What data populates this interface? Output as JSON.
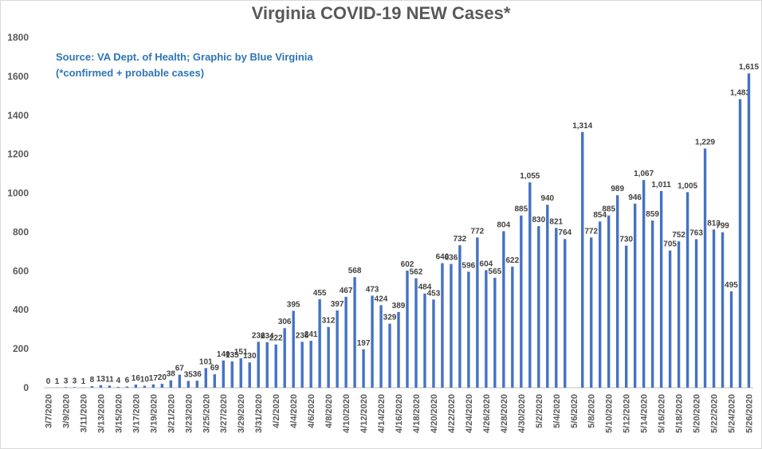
{
  "chart_data": {
    "type": "bar",
    "title": "Virginia COVID-19 NEW Cases*",
    "annotations": [
      "Source: VA Dept. of Health; Graphic by Blue Virginia",
      "(*confirmed + probable cases)"
    ],
    "categories": [
      "3/7/2020",
      null,
      "3/9/2020",
      null,
      "3/11/2020",
      null,
      "3/13/2020",
      null,
      "3/15/2020",
      null,
      "3/17/2020",
      null,
      "3/19/2020",
      null,
      "3/21/2020",
      null,
      "3/23/2020",
      null,
      "3/25/2020",
      null,
      "3/27/2020",
      null,
      "3/29/2020",
      null,
      "3/31/2020",
      null,
      "4/2/2020",
      null,
      "4/4/2020",
      null,
      "4/6/2020",
      null,
      "4/8/2020",
      null,
      "4/10/2020",
      null,
      "4/12/2020",
      null,
      "4/14/2020",
      null,
      "4/16/2020",
      null,
      "4/18/2020",
      null,
      "4/20/2020",
      null,
      "4/22/2020",
      null,
      "4/24/2020",
      null,
      "4/26/2020",
      null,
      "4/28/2020",
      null,
      "4/30/2020",
      null,
      "5/2/2020",
      null,
      "5/4/2020",
      null,
      "5/6/2020",
      null,
      "5/8/2020",
      null,
      "5/10/2020",
      null,
      "5/12/2020",
      null,
      "5/14/2020",
      null,
      "5/16/2020",
      null,
      "5/18/2020",
      null,
      "5/20/2020",
      null,
      "5/22/2020",
      null,
      "5/24/2020",
      null,
      "5/26/2020"
    ],
    "values": [
      0,
      1,
      3,
      3,
      1,
      8,
      13,
      11,
      4,
      6,
      16,
      10,
      17,
      20,
      38,
      67,
      35,
      36,
      101,
      69,
      140,
      135,
      151,
      130,
      236,
      234,
      222,
      306,
      395,
      236,
      241,
      455,
      312,
      397,
      467,
      568,
      197,
      473,
      424,
      329,
      389,
      602,
      562,
      484,
      453,
      640,
      636,
      732,
      596,
      772,
      604,
      565,
      804,
      622,
      885,
      1055,
      830,
      940,
      821,
      764,
      null,
      1314,
      772,
      854,
      885,
      989,
      730,
      946,
      1067,
      859,
      1011,
      705,
      752,
      1005,
      763,
      1229,
      813,
      799,
      495,
      1483,
      1615
    ],
    "value_labels": [
      "0",
      "1",
      "3",
      "3",
      "1",
      "8",
      "13",
      "11",
      "4",
      "6",
      "16",
      "10",
      "17",
      "20",
      "38",
      "67",
      "35",
      "36",
      "101",
      "69",
      "140",
      "135",
      "151",
      "130",
      "236",
      "234",
      "222",
      "306",
      "395",
      "236",
      "241",
      "455",
      "312",
      "397",
      "467",
      "568",
      "197",
      "473",
      "424",
      "329",
      "389",
      "602",
      "562",
      "484",
      "453",
      "640",
      "636",
      "732",
      "596",
      "772",
      "604",
      "565",
      "804",
      "622",
      "885",
      "1,055",
      "830",
      "940",
      "821",
      "764",
      null,
      "1,314",
      "772",
      "854",
      "885",
      "989",
      "730",
      "946",
      "1,067",
      "859",
      "1,011",
      "705",
      "752",
      "1,005",
      "763",
      "1,229",
      "813",
      "799",
      "495",
      "1,483",
      "1,615"
    ],
    "color": "#4472c4",
    "ylim": [
      0,
      1800
    ],
    "yticks": [
      0,
      200,
      400,
      600,
      800,
      1000,
      1200,
      1400,
      1600,
      1800
    ],
    "grid": false
  }
}
